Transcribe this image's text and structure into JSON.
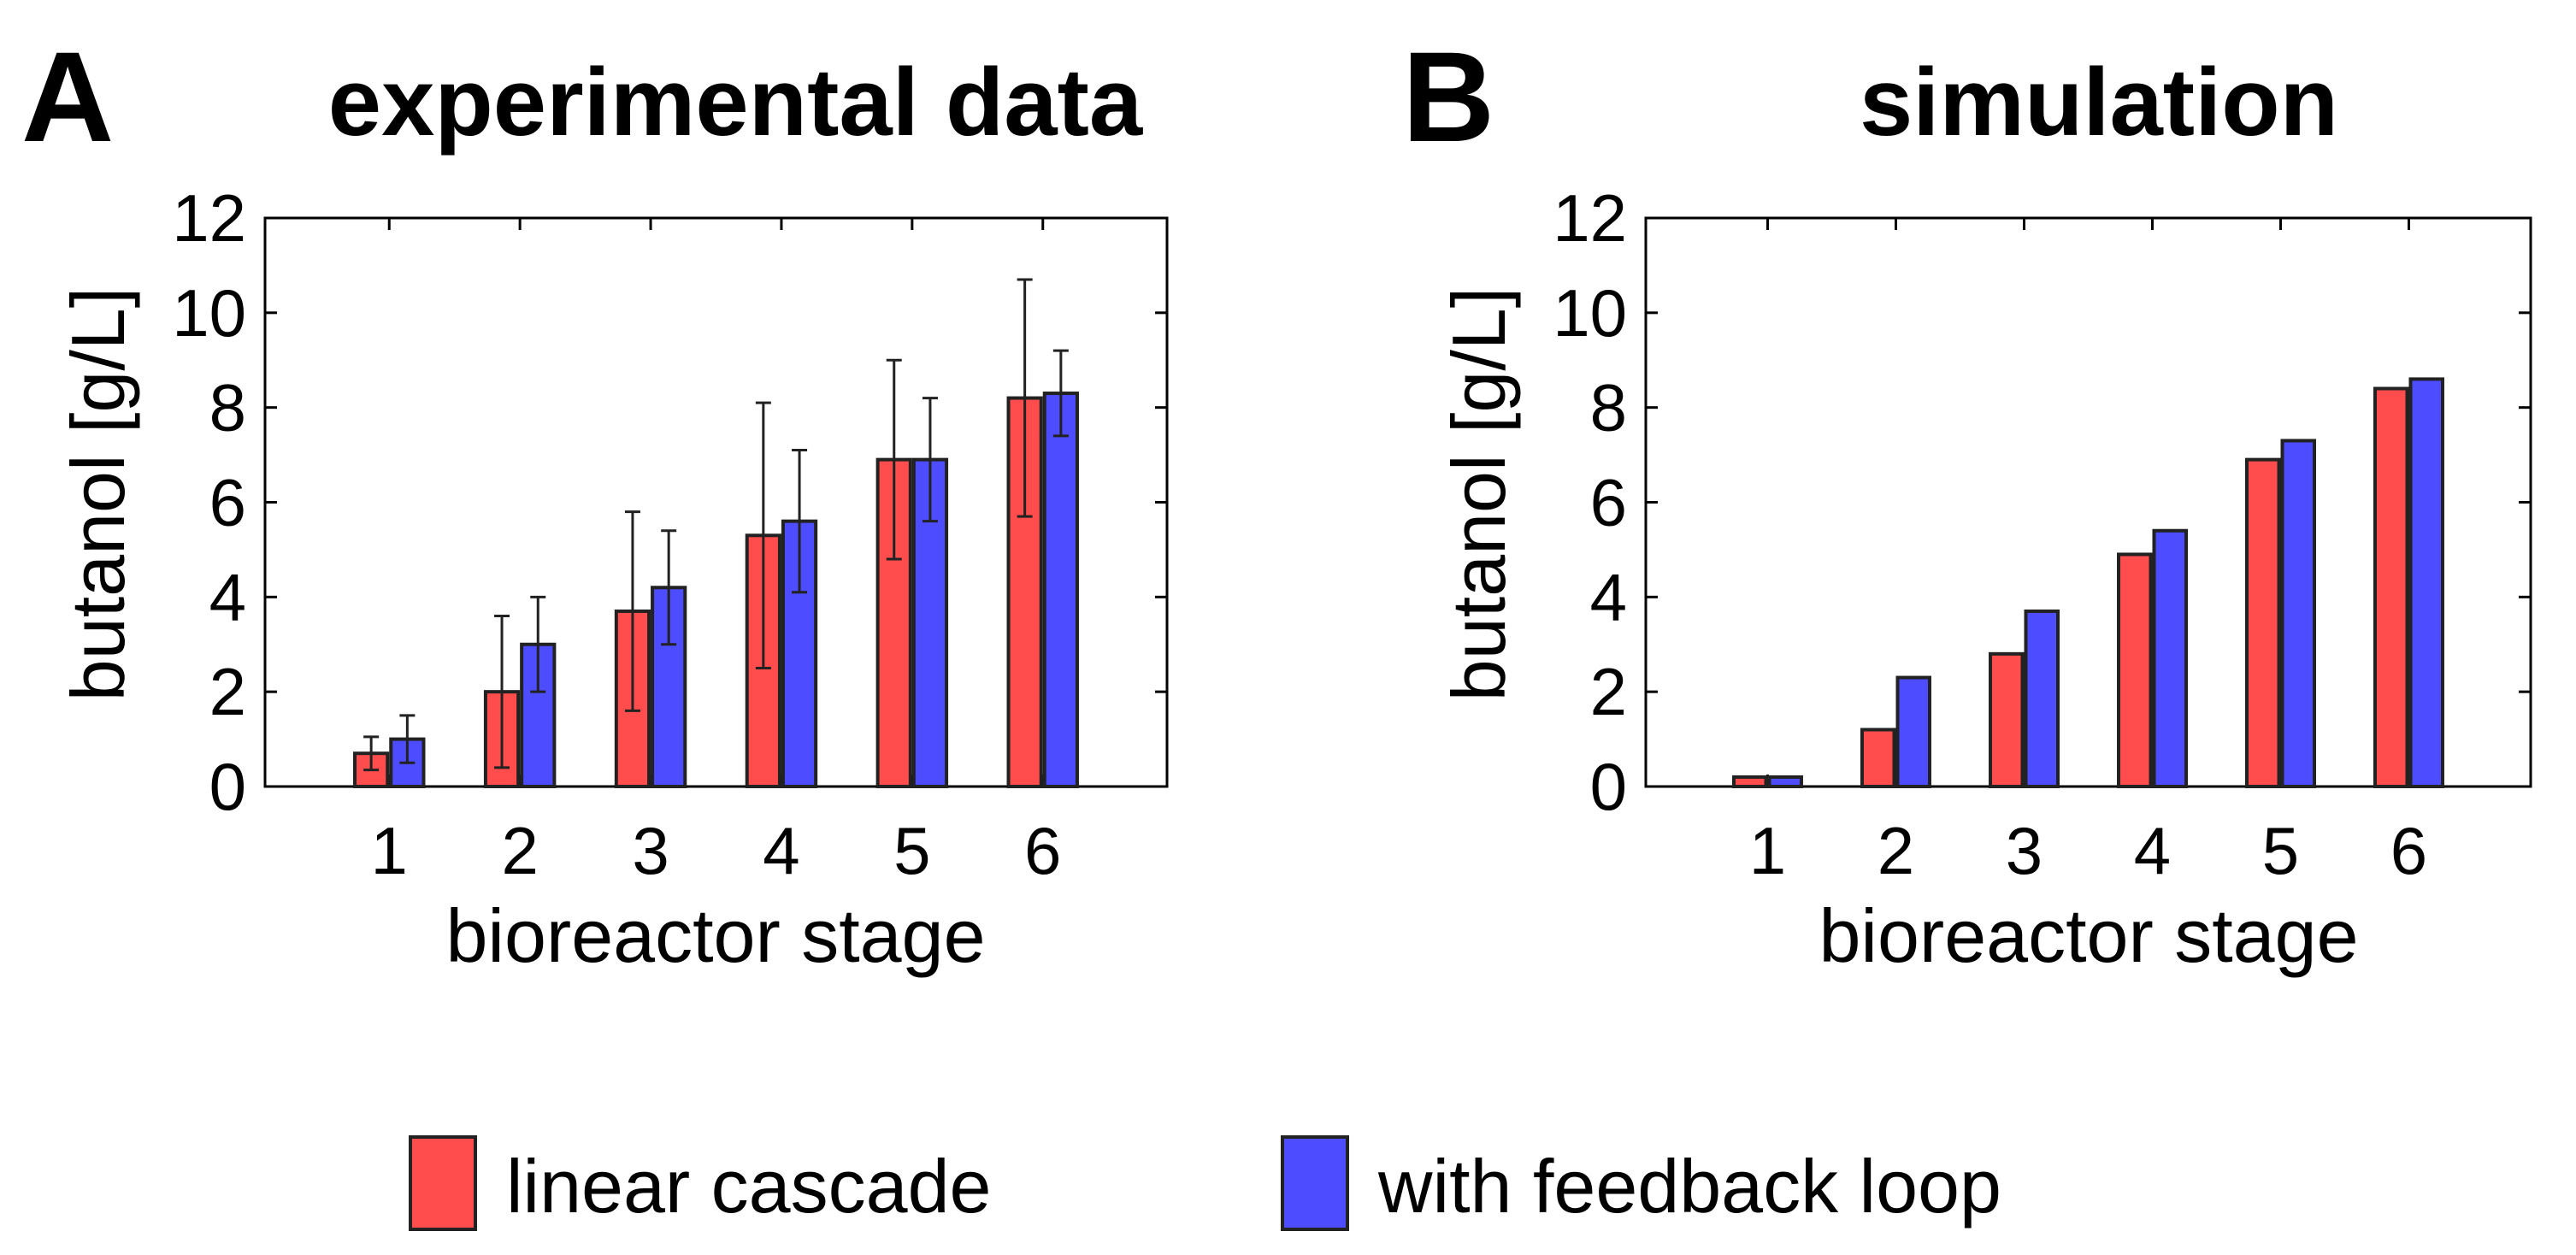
{
  "colors": {
    "linear": "#ff4d4d",
    "feedback": "#4d4dff"
  },
  "legend": [
    {
      "label": "linear cascade",
      "color_key": "linear"
    },
    {
      "label": "with feedback loop",
      "color_key": "feedback"
    }
  ],
  "chart_data": [
    {
      "type": "bar",
      "panel_letter": "A",
      "title": "experimental data",
      "xlabel": "bioreactor stage",
      "ylabel": "butanol [g/L]",
      "categories": [
        "1",
        "2",
        "3",
        "4",
        "5",
        "6"
      ],
      "ylim": [
        0,
        12
      ],
      "yticks": [
        0,
        2,
        4,
        6,
        8,
        10,
        12
      ],
      "series": [
        {
          "name": "linear cascade",
          "color_key": "linear",
          "values": [
            0.7,
            2.0,
            3.7,
            5.3,
            6.9,
            8.2
          ],
          "errors": [
            0.35,
            1.6,
            2.1,
            2.8,
            2.1,
            2.5
          ]
        },
        {
          "name": "with feedback loop",
          "color_key": "feedback",
          "values": [
            1.0,
            3.0,
            4.2,
            5.6,
            6.9,
            8.3
          ],
          "errors": [
            0.5,
            1.0,
            1.2,
            1.5,
            1.3,
            0.9
          ]
        }
      ]
    },
    {
      "type": "bar",
      "panel_letter": "B",
      "title": "simulation",
      "xlabel": "bioreactor stage",
      "ylabel": "butanol [g/L]",
      "categories": [
        "1",
        "2",
        "3",
        "4",
        "5",
        "6"
      ],
      "ylim": [
        0,
        12
      ],
      "yticks": [
        0,
        2,
        4,
        6,
        8,
        10,
        12
      ],
      "series": [
        {
          "name": "linear cascade",
          "color_key": "linear",
          "values": [
            0.2,
            1.2,
            2.8,
            4.9,
            6.9,
            8.4
          ]
        },
        {
          "name": "with feedback loop",
          "color_key": "feedback",
          "values": [
            0.2,
            2.3,
            3.7,
            5.4,
            7.3,
            8.6
          ]
        }
      ]
    }
  ]
}
